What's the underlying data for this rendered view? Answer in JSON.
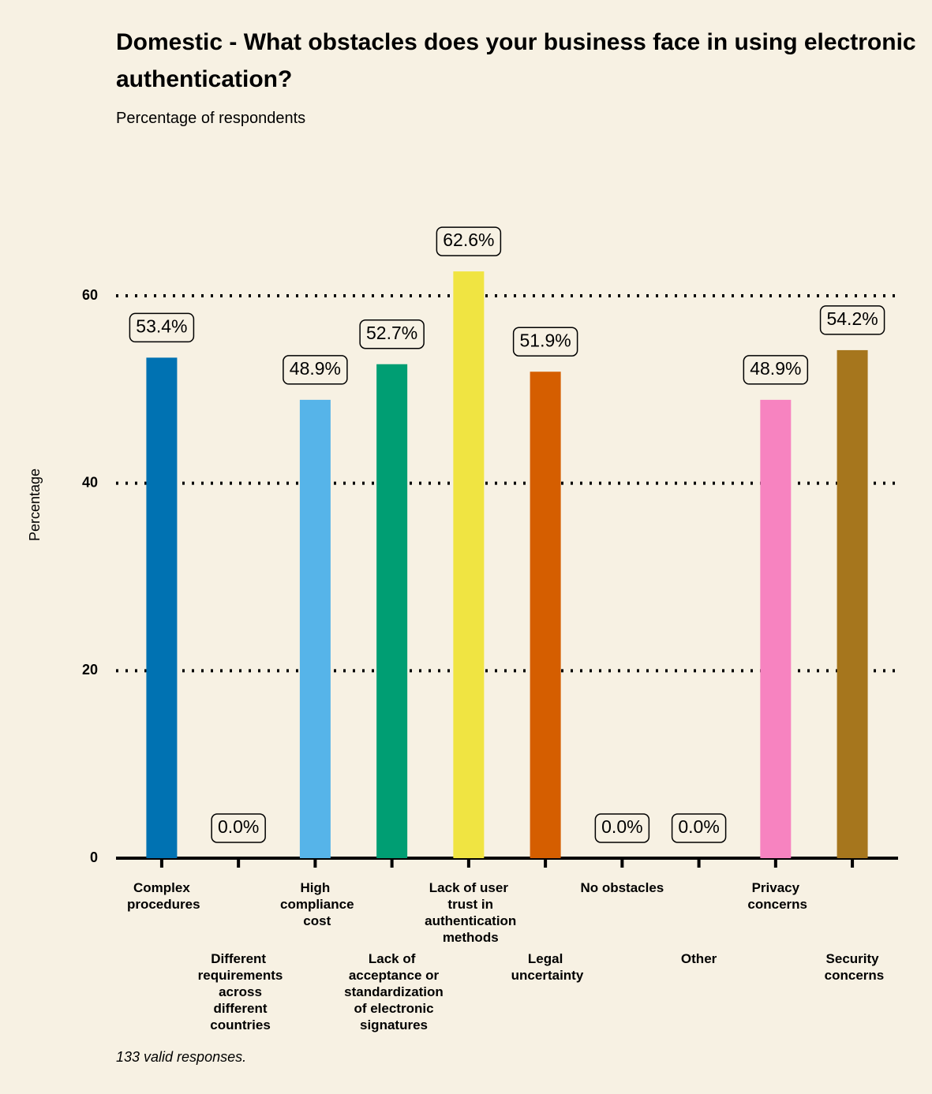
{
  "chart_data": {
    "type": "bar",
    "title": "Domestic - What obstacles does your business face in using electronic authentication?",
    "subtitle": "Percentage of respondents",
    "y_label": "Percentage",
    "note": "133 valid responses.",
    "categories": [
      "Complex procedures",
      "Different requirements across different countries",
      "High compliance cost",
      "Lack of acceptance or standardization of electronic signatures",
      "Lack of user trust in authentication methods",
      "Legal uncertainty",
      "No obstacles",
      "Other",
      "Privacy concerns",
      "Security concerns"
    ],
    "values": [
      53.4,
      0.0,
      48.9,
      52.7,
      62.6,
      51.9,
      0.0,
      0.0,
      48.9,
      54.2
    ],
    "value_labels": [
      "53.4%",
      "0.0%",
      "48.9%",
      "52.7%",
      "62.6%",
      "51.9%",
      "0.0%",
      "0.0%",
      "48.9%",
      "54.2%"
    ],
    "colors": [
      "#0072b2",
      null,
      "#56b4e9",
      "#009e73",
      "#f0e442",
      "#d55e00",
      null,
      null,
      "#f783c0",
      "#a6761d"
    ],
    "ylim": [
      0,
      65
    ],
    "yticks": [
      0,
      20,
      40,
      60
    ],
    "grid": true
  }
}
